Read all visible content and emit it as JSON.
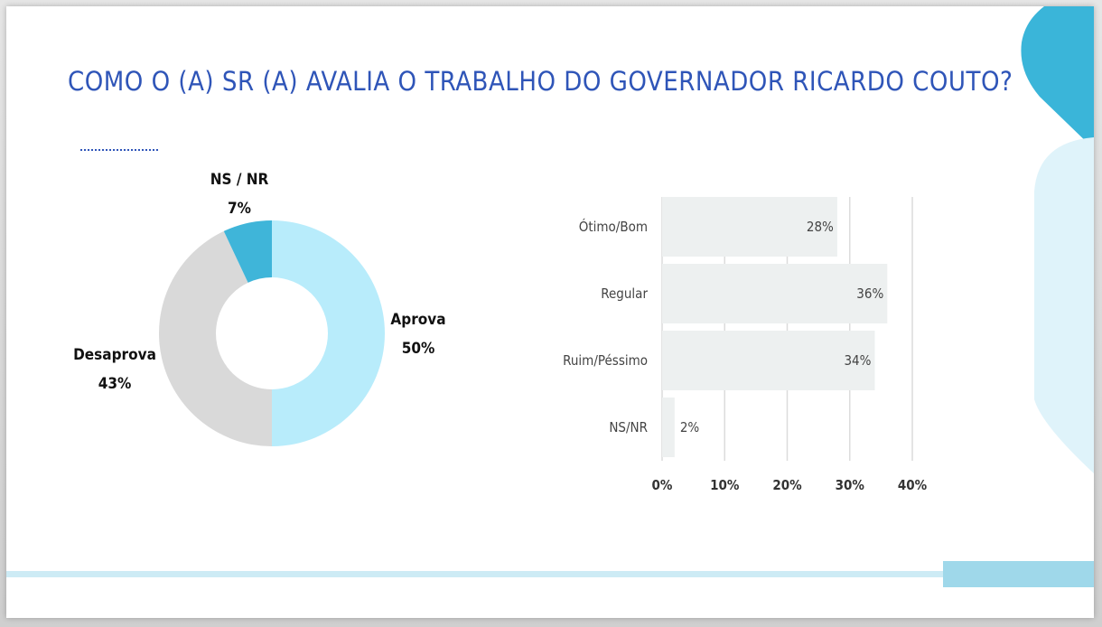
{
  "title": "COMO O (A) SR (A) AVALIA O TRABALHO DO GOVERNADOR RICARDO COUTO?",
  "colors": {
    "title": "#2f55b8",
    "aprova": "#b8ecfb",
    "desaprova": "#d9d9d9",
    "nsnr": "#3fb5d9",
    "bar": "#edf0f0",
    "accent": "#3ab5d9",
    "accent_light": "#dff3fa"
  },
  "chart_data": [
    {
      "type": "pie",
      "variant": "donut",
      "categories": [
        "Aprova",
        "Desaprova",
        "NS / NR"
      ],
      "values": [
        50,
        43,
        7
      ],
      "labels": [
        {
          "name": "Aprova",
          "value": "50%"
        },
        {
          "name": "Desaprova",
          "value": "43%"
        },
        {
          "name": "NS / NR",
          "value": "7%"
        }
      ]
    },
    {
      "type": "bar",
      "orientation": "horizontal",
      "categories": [
        "Ótimo/Bom",
        "Regular",
        "Ruim/Péssimo",
        "NS/NR"
      ],
      "values": [
        28,
        36,
        34,
        2
      ],
      "value_labels": [
        "28%",
        "36%",
        "34%",
        "2%"
      ],
      "xlim": [
        0,
        40
      ],
      "xticks": [
        "0%",
        "10%",
        "20%",
        "30%",
        "40%"
      ],
      "grid": true
    }
  ]
}
